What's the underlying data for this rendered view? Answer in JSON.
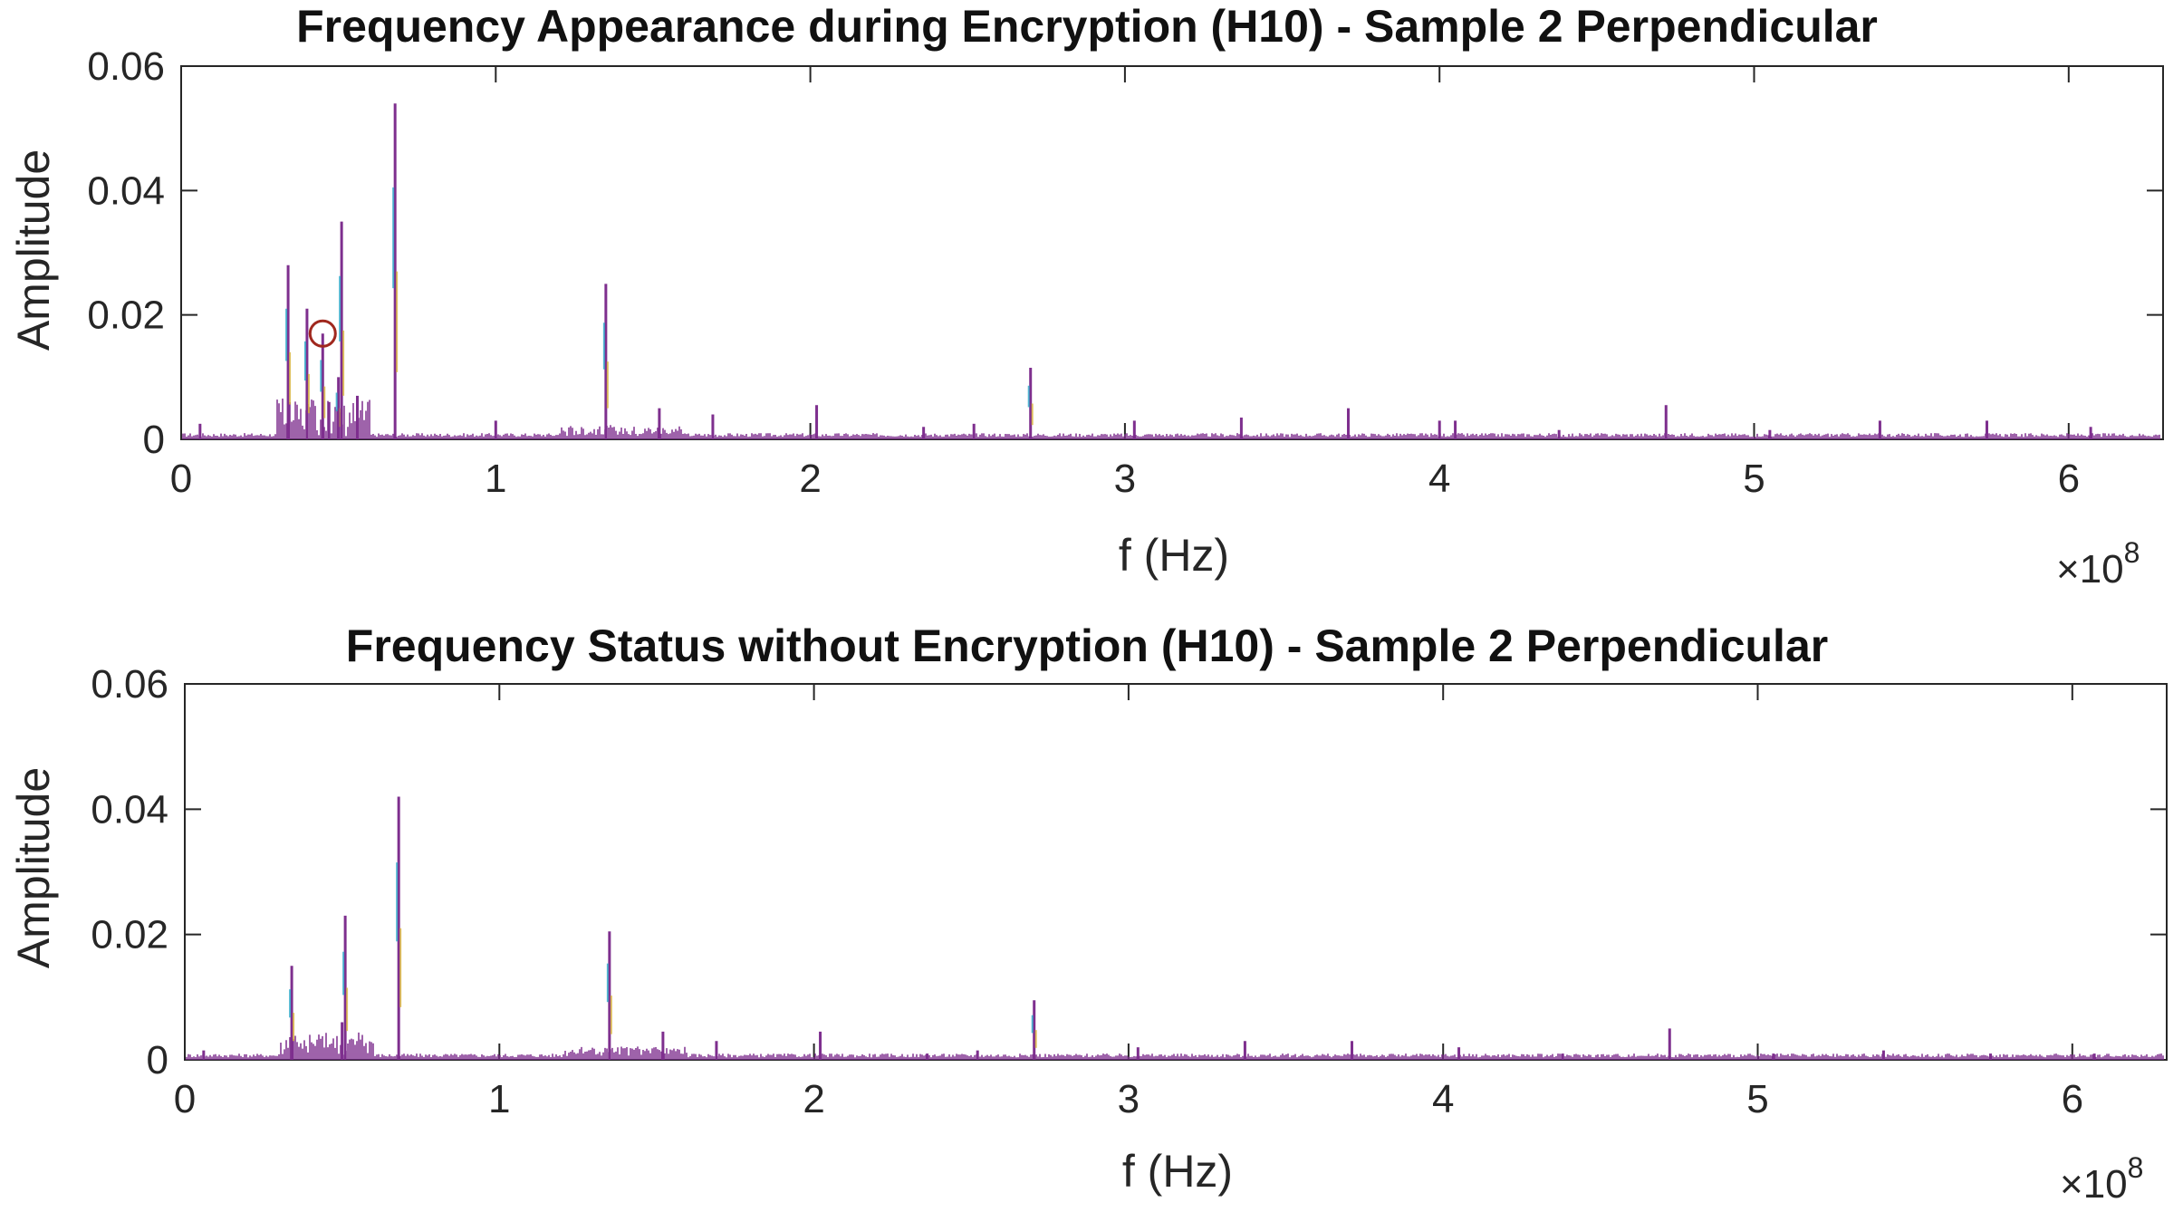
{
  "chart_data": [
    {
      "type": "line",
      "title": "Frequency Appearance during Encryption (H10) - Sample 2 Perpendicular",
      "xlabel": "f (Hz)",
      "ylabel": "Amplitude",
      "x_multiplier": "×10",
      "x_multiplier_exp": "8",
      "xlim": [
        0,
        6.3
      ],
      "ylim": [
        0,
        0.06
      ],
      "xticks": [
        "0",
        "1",
        "2",
        "3",
        "4",
        "5",
        "6"
      ],
      "yticks": [
        "0",
        "0.02",
        "0.04",
        "0.06"
      ],
      "grid": false,
      "marker": {
        "x": 0.45,
        "y": 0.017,
        "color": "#a0281e"
      },
      "series": [
        {
          "color": "#7e2f8e",
          "peaks": [
            {
              "x": 0.06,
              "y": 0.0025
            },
            {
              "x": 0.34,
              "y": 0.028
            },
            {
              "x": 0.4,
              "y": 0.021
            },
            {
              "x": 0.45,
              "y": 0.017
            },
            {
              "x": 0.47,
              "y": 0.006
            },
            {
              "x": 0.5,
              "y": 0.01
            },
            {
              "x": 0.51,
              "y": 0.035
            },
            {
              "x": 0.56,
              "y": 0.007
            },
            {
              "x": 0.68,
              "y": 0.054
            },
            {
              "x": 1.0,
              "y": 0.003
            },
            {
              "x": 1.35,
              "y": 0.025
            },
            {
              "x": 1.52,
              "y": 0.005
            },
            {
              "x": 1.69,
              "y": 0.004
            },
            {
              "x": 2.02,
              "y": 0.0055
            },
            {
              "x": 2.36,
              "y": 0.002
            },
            {
              "x": 2.52,
              "y": 0.0025
            },
            {
              "x": 2.7,
              "y": 0.0115
            },
            {
              "x": 3.03,
              "y": 0.003
            },
            {
              "x": 3.37,
              "y": 0.0035
            },
            {
              "x": 3.71,
              "y": 0.005
            },
            {
              "x": 4.0,
              "y": 0.003
            },
            {
              "x": 4.05,
              "y": 0.003
            },
            {
              "x": 4.38,
              "y": 0.0015
            },
            {
              "x": 4.72,
              "y": 0.0055
            },
            {
              "x": 5.05,
              "y": 0.0015
            },
            {
              "x": 5.4,
              "y": 0.003
            },
            {
              "x": 5.74,
              "y": 0.003
            },
            {
              "x": 6.07,
              "y": 0.002
            }
          ]
        }
      ]
    },
    {
      "type": "line",
      "title": "Frequency Status without Encryption (H10) - Sample 2 Perpendicular",
      "xlabel": "f (Hz)",
      "ylabel": "Amplitude",
      "x_multiplier": "×10",
      "x_multiplier_exp": "8",
      "xlim": [
        0,
        6.3
      ],
      "ylim": [
        0,
        0.06
      ],
      "xticks": [
        "0",
        "1",
        "2",
        "3",
        "4",
        "5",
        "6"
      ],
      "yticks": [
        "0",
        "0.02",
        "0.04",
        "0.06"
      ],
      "grid": false,
      "series": [
        {
          "color": "#7e2f8e",
          "peaks": [
            {
              "x": 0.06,
              "y": 0.0015
            },
            {
              "x": 0.34,
              "y": 0.015
            },
            {
              "x": 0.5,
              "y": 0.006
            },
            {
              "x": 0.51,
              "y": 0.023
            },
            {
              "x": 0.68,
              "y": 0.042
            },
            {
              "x": 1.35,
              "y": 0.0205
            },
            {
              "x": 1.52,
              "y": 0.0045
            },
            {
              "x": 1.69,
              "y": 0.003
            },
            {
              "x": 2.02,
              "y": 0.0045
            },
            {
              "x": 2.36,
              "y": 0.001
            },
            {
              "x": 2.52,
              "y": 0.0015
            },
            {
              "x": 2.7,
              "y": 0.0095
            },
            {
              "x": 3.03,
              "y": 0.002
            },
            {
              "x": 3.37,
              "y": 0.003
            },
            {
              "x": 3.71,
              "y": 0.003
            },
            {
              "x": 4.05,
              "y": 0.002
            },
            {
              "x": 4.38,
              "y": 0.001
            },
            {
              "x": 4.72,
              "y": 0.005
            },
            {
              "x": 5.05,
              "y": 0.001
            },
            {
              "x": 5.4,
              "y": 0.0015
            },
            {
              "x": 5.74,
              "y": 0.001
            },
            {
              "x": 6.07,
              "y": 0.001
            }
          ]
        }
      ]
    }
  ]
}
